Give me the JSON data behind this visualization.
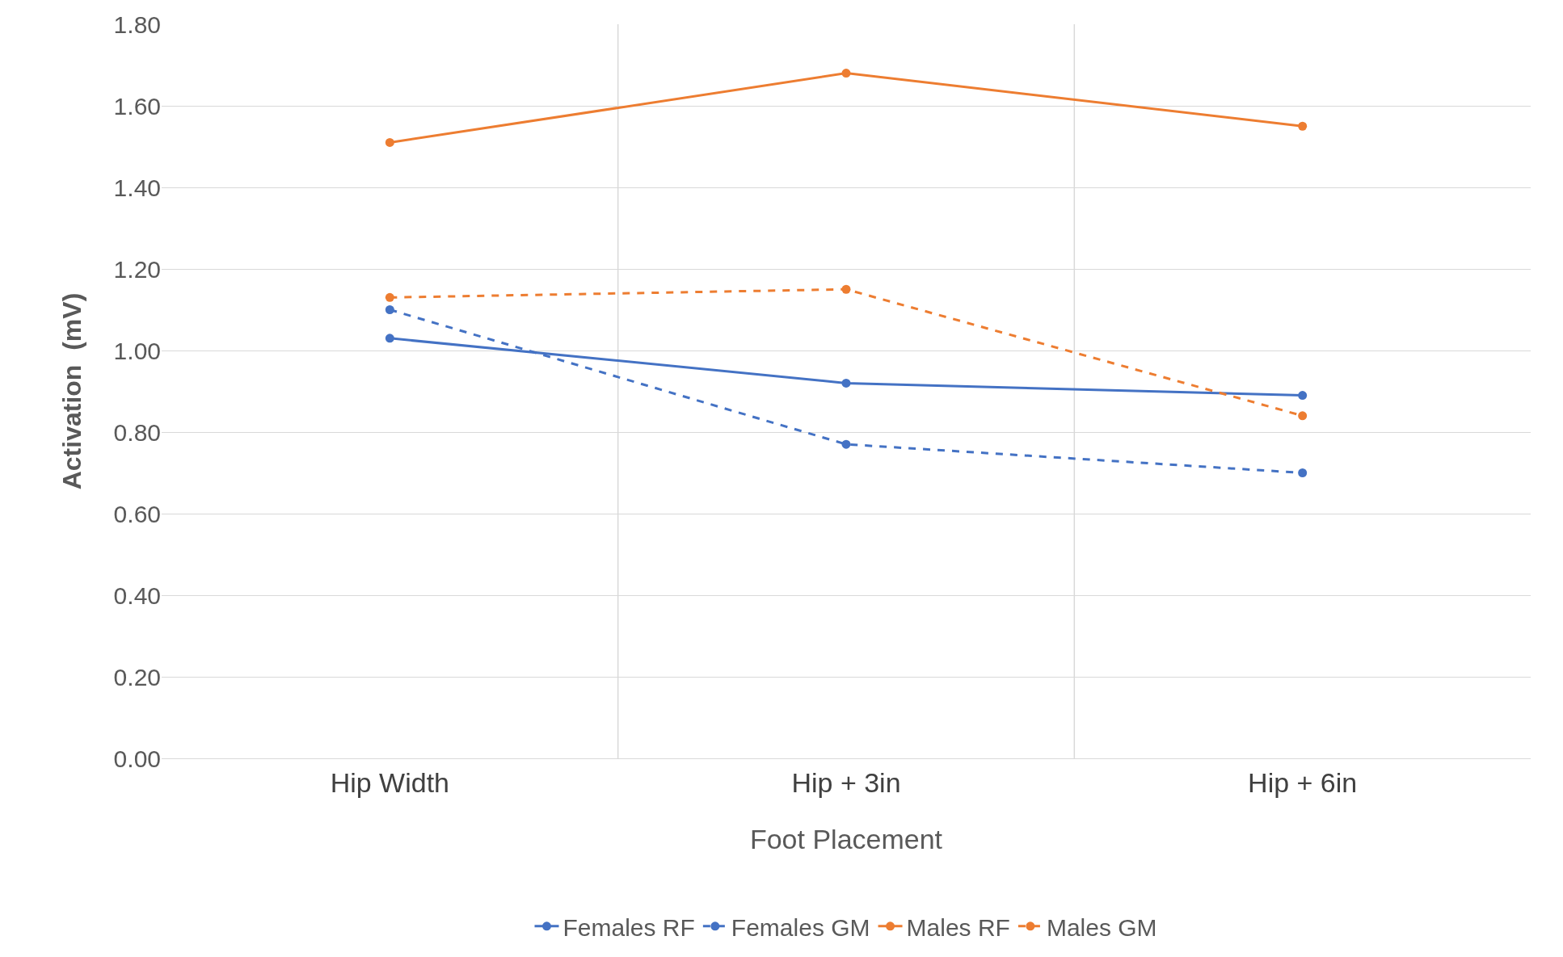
{
  "chart_data": {
    "type": "line",
    "xlabel": "Foot Placement",
    "ylabel": "Activation  (mV)",
    "categories": [
      "Hip Width",
      "Hip + 3in",
      "Hip + 6in"
    ],
    "series": [
      {
        "name": "Females RF",
        "color": "#4472c4",
        "values": [
          1.03,
          0.92,
          0.89
        ],
        "line_style": "solid"
      },
      {
        "name": "Females GM",
        "color": "#4472c4",
        "values": [
          1.1,
          0.77,
          0.7
        ],
        "line_style": "dashed"
      },
      {
        "name": "Males RF",
        "color": "#ed7d31",
        "values": [
          1.51,
          1.68,
          1.55
        ],
        "line_style": "solid"
      },
      {
        "name": "Males GM",
        "color": "#ed7d31",
        "values": [
          1.13,
          1.15,
          0.84
        ],
        "line_style": "dashed"
      }
    ],
    "ylim": [
      0,
      1.8
    ],
    "yticks": [
      {
        "value": 0,
        "label": "0.00"
      },
      {
        "value": 0.2,
        "label": "0.20"
      },
      {
        "value": 0.4,
        "label": "0.40"
      },
      {
        "value": 0.6,
        "label": "0.60"
      },
      {
        "value": 0.8,
        "label": "0.80"
      },
      {
        "value": 1.0,
        "label": "1.00"
      },
      {
        "value": 1.2,
        "label": "1.20"
      },
      {
        "value": 1.4,
        "label": "1.40"
      },
      {
        "value": 1.6,
        "label": "1.60"
      },
      {
        "value": 1.8,
        "label": "1.80"
      }
    ],
    "grid": true,
    "legend": "bottom",
    "marker": "circle"
  }
}
